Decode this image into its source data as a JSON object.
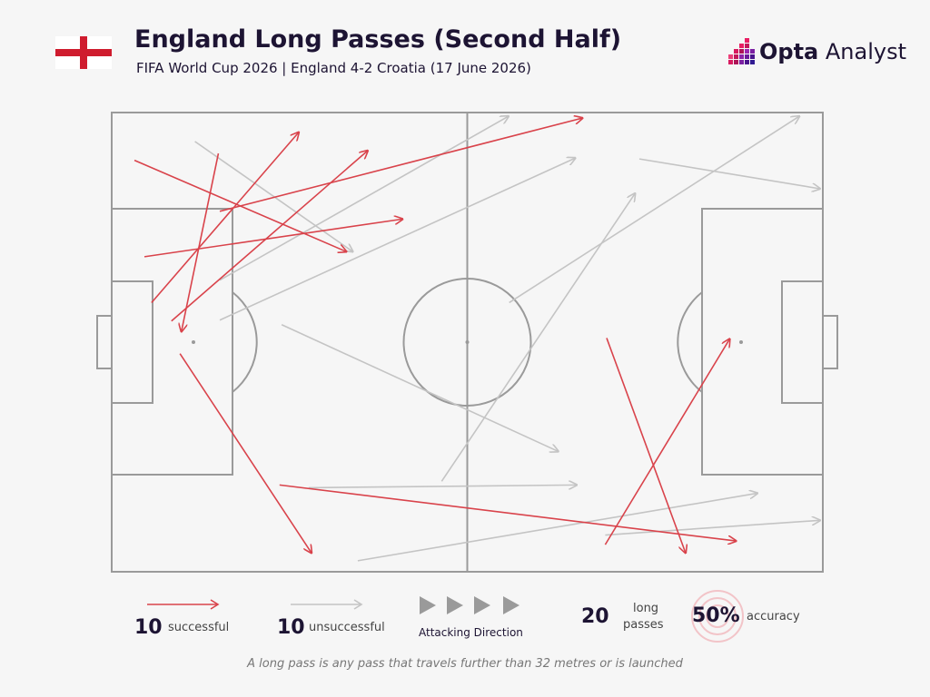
{
  "header": {
    "title": "England Long Passes (Second Half)",
    "subtitle": "FIFA World Cup 2026 | England 4-2 Croatia (17 June 2026)",
    "flag": "england-flag",
    "brand_bold": "Opta",
    "brand_light": " Analyst"
  },
  "colors": {
    "successful": "#d9434b",
    "unsuccessful": "#c4c4c4",
    "pitch_lines": "#9a9a9a",
    "flag_red": "#cf1c2e",
    "brand_magenta": "#c2185b"
  },
  "chart_data": {
    "type": "scatter",
    "x_range": [
      0,
      100
    ],
    "y_range": [
      0,
      100
    ],
    "attack_direction": "left-to-right",
    "passes": [
      {
        "outcome": "successful",
        "from": [
          3.2,
          89.6
        ],
        "to": [
          33.0,
          69.7
        ]
      },
      {
        "outcome": "successful",
        "from": [
          4.6,
          68.6
        ],
        "to": [
          40.9,
          76.8
        ]
      },
      {
        "outcome": "successful",
        "from": [
          5.6,
          58.6
        ],
        "to": [
          26.3,
          95.7
        ]
      },
      {
        "outcome": "successful",
        "from": [
          8.4,
          54.6
        ],
        "to": [
          36.0,
          91.7
        ]
      },
      {
        "outcome": "successful",
        "from": [
          15.0,
          91.1
        ],
        "to": [
          9.8,
          52.3
        ]
      },
      {
        "outcome": "successful",
        "from": [
          15.2,
          78.5
        ],
        "to": [
          66.2,
          98.8
        ]
      },
      {
        "outcome": "successful",
        "from": [
          9.6,
          47.5
        ],
        "to": [
          28.1,
          4.1
        ]
      },
      {
        "outcome": "successful",
        "from": [
          23.6,
          18.9
        ],
        "to": [
          87.8,
          6.7
        ]
      },
      {
        "outcome": "successful",
        "from": [
          69.4,
          5.9
        ],
        "to": [
          86.9,
          50.7
        ]
      },
      {
        "outcome": "successful",
        "from": [
          69.6,
          50.9
        ],
        "to": [
          80.7,
          4.1
        ]
      },
      {
        "outcome": "unsuccessful",
        "from": [
          11.7,
          93.7
        ],
        "to": [
          33.9,
          69.7
        ]
      },
      {
        "outcome": "unsuccessful",
        "from": [
          15.2,
          63.5
        ],
        "to": [
          55.8,
          99.2
        ]
      },
      {
        "outcome": "unsuccessful",
        "from": [
          15.2,
          54.8
        ],
        "to": [
          65.2,
          90.1
        ]
      },
      {
        "outcome": "unsuccessful",
        "from": [
          23.9,
          53.8
        ],
        "to": [
          62.8,
          26.2
        ]
      },
      {
        "outcome": "unsuccessful",
        "from": [
          46.4,
          19.7
        ],
        "to": [
          73.6,
          82.4
        ]
      },
      {
        "outcome": "unsuccessful",
        "from": [
          55.9,
          58.6
        ],
        "to": [
          96.7,
          99.2
        ]
      },
      {
        "outcome": "unsuccessful",
        "from": [
          74.2,
          89.9
        ],
        "to": [
          99.6,
          83.4
        ]
      },
      {
        "outcome": "unsuccessful",
        "from": [
          27.7,
          18.3
        ],
        "to": [
          65.4,
          18.9
        ]
      },
      {
        "outcome": "unsuccessful",
        "from": [
          34.6,
          2.4
        ],
        "to": [
          90.8,
          17.1
        ]
      },
      {
        "outcome": "unsuccessful",
        "from": [
          69.4,
          8.0
        ],
        "to": [
          99.6,
          11.2
        ]
      }
    ]
  },
  "legend": {
    "successful_count": "10",
    "successful_label": "successful",
    "unsuccessful_count": "10",
    "unsuccessful_label": "unsuccessful",
    "direction_label": "Attacking Direction",
    "total_count": "20",
    "total_label_line1": "long",
    "total_label_line2": "passes",
    "accuracy_value": "50%",
    "accuracy_label": "accuracy"
  },
  "footnote": "A long pass is any pass that travels further than 32 metres or is launched"
}
